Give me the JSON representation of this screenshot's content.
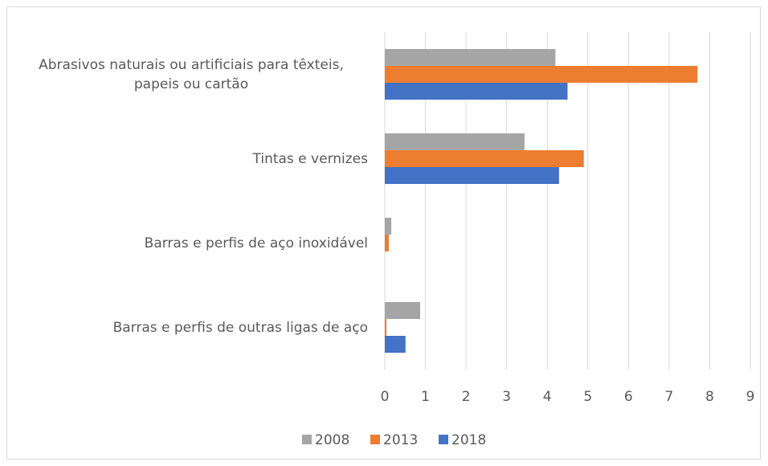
{
  "chart_data": {
    "type": "bar",
    "orientation": "horizontal",
    "categories": [
      "Abrasivos naturais ou artificiais para têxteis, papeis ou cartão",
      "Tintas e vernizes",
      "Barras e perfis de aço inoxidável",
      "Barras e perfis de outras ligas de  aço"
    ],
    "series": [
      {
        "name": "2008",
        "color": "#a5a5a5",
        "values": [
          4.2,
          3.44,
          0.16,
          0.87
        ]
      },
      {
        "name": "2013",
        "color": "#ed7d31",
        "values": [
          7.7,
          4.9,
          0.1,
          0.04
        ]
      },
      {
        "name": "2018",
        "color": "#4472c4",
        "values": [
          4.5,
          4.29,
          0,
          0.51
        ]
      }
    ],
    "xlim": [
      0,
      9
    ],
    "xticks": [
      0,
      1,
      2,
      3,
      4,
      5,
      6,
      7,
      8,
      9
    ],
    "grid": true,
    "legend": "bottom"
  }
}
